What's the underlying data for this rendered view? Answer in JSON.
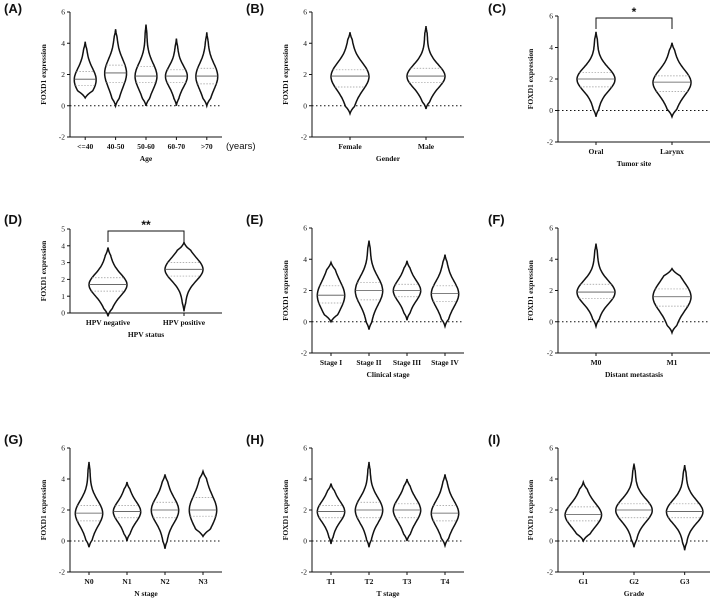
{
  "figure": {
    "ylabel": "FOXD1 expression",
    "colors": {
      "stroke": "#111111",
      "median": "#555555",
      "quartile": "#999999",
      "background": "#ffffff"
    }
  },
  "chart_data": [
    {
      "panel": "(A)",
      "type": "violin",
      "xlabel": "Age",
      "x_extra": "(years)",
      "ylabel": "FOXD1 expression",
      "ylim": [
        -2,
        6
      ],
      "yticks": [
        -2,
        0,
        2,
        4,
        6
      ],
      "reference_line": 0,
      "significance": null,
      "categories": [
        "<=40",
        "40-50",
        "50-60",
        "60-70",
        ">70"
      ],
      "series": [
        {
          "name": "<=40",
          "min": 0.5,
          "q1": 1.3,
          "median": 1.7,
          "q3": 2.2,
          "max": 4.1
        },
        {
          "name": "40-50",
          "min": 0.0,
          "q1": 1.5,
          "median": 2.1,
          "q3": 2.6,
          "max": 4.9
        },
        {
          "name": "50-60",
          "min": 0.0,
          "q1": 1.5,
          "median": 1.9,
          "q3": 2.5,
          "max": 5.2
        },
        {
          "name": "60-70",
          "min": 0.0,
          "q1": 1.5,
          "median": 1.9,
          "q3": 2.3,
          "max": 4.3
        },
        {
          "name": ">70",
          "min": 0.0,
          "q1": 1.4,
          "median": 1.9,
          "q3": 2.4,
          "max": 4.7
        }
      ]
    },
    {
      "panel": "(B)",
      "type": "violin",
      "xlabel": "Gender",
      "ylabel": "FOXD1 expression",
      "ylim": [
        -2,
        6
      ],
      "yticks": [
        -2,
        0,
        2,
        4,
        6
      ],
      "reference_line": 0,
      "significance": null,
      "categories": [
        "Female",
        "Male"
      ],
      "series": [
        {
          "name": "Female",
          "min": -0.5,
          "q1": 1.2,
          "median": 1.9,
          "q3": 2.3,
          "max": 4.7
        },
        {
          "name": "Male",
          "min": -0.2,
          "q1": 1.5,
          "median": 1.9,
          "q3": 2.4,
          "max": 5.1
        }
      ]
    },
    {
      "panel": "(C)",
      "type": "violin",
      "xlabel": "Tumor site",
      "ylabel": "FOXD1 expression",
      "ylim": [
        -2,
        6
      ],
      "yticks": [
        -2,
        0,
        2,
        4,
        6
      ],
      "reference_line": 0,
      "significance": {
        "from": 0,
        "to": 1,
        "label": "*"
      },
      "categories": [
        "Oral",
        "Larynx"
      ],
      "series": [
        {
          "name": "Oral",
          "min": -0.4,
          "q1": 1.5,
          "median": 2.0,
          "q3": 2.4,
          "max": 5.0
        },
        {
          "name": "Larynx",
          "min": -0.4,
          "q1": 1.2,
          "median": 1.8,
          "q3": 2.2,
          "max": 4.3
        }
      ]
    },
    {
      "panel": "(D)",
      "type": "violin",
      "xlabel": "HPV status",
      "ylabel": "FOXD1 expression",
      "ylim": [
        0,
        5
      ],
      "yticks": [
        0,
        1,
        2,
        3,
        4,
        5
      ],
      "reference_line": null,
      "significance": {
        "from": 0,
        "to": 1,
        "label": "**"
      },
      "categories": [
        "HPV negative",
        "HPV positive"
      ],
      "series": [
        {
          "name": "HPV negative",
          "min": -0.2,
          "q1": 1.3,
          "median": 1.7,
          "q3": 2.1,
          "max": 3.9
        },
        {
          "name": "HPV positive",
          "min": 0.1,
          "q1": 2.2,
          "median": 2.6,
          "q3": 3.0,
          "max": 4.2
        }
      ]
    },
    {
      "panel": "(E)",
      "type": "violin",
      "xlabel": "Clinical stage",
      "ylabel": "FOXD1 expression",
      "ylim": [
        -2,
        6
      ],
      "yticks": [
        -2,
        0,
        2,
        4,
        6
      ],
      "reference_line": 0,
      "significance": null,
      "categories": [
        "Stage I",
        "Stage II",
        "Stage III",
        "Stage IV"
      ],
      "series": [
        {
          "name": "Stage I",
          "min": 0.0,
          "q1": 1.2,
          "median": 1.7,
          "q3": 2.3,
          "max": 3.8
        },
        {
          "name": "Stage II",
          "min": -0.5,
          "q1": 1.4,
          "median": 2.0,
          "q3": 2.5,
          "max": 5.2
        },
        {
          "name": "Stage III",
          "min": 0.1,
          "q1": 1.6,
          "median": 2.0,
          "q3": 2.4,
          "max": 3.9
        },
        {
          "name": "Stage IV",
          "min": -0.3,
          "q1": 1.3,
          "median": 1.8,
          "q3": 2.3,
          "max": 4.3
        }
      ]
    },
    {
      "panel": "(F)",
      "type": "violin",
      "xlabel": "Distant metastasis",
      "ylabel": "FOXD1 expression",
      "ylim": [
        -2,
        6
      ],
      "yticks": [
        -2,
        0,
        2,
        4,
        6
      ],
      "reference_line": 0,
      "significance": null,
      "categories": [
        "M0",
        "M1"
      ],
      "series": [
        {
          "name": "M0",
          "min": -0.3,
          "q1": 1.5,
          "median": 1.9,
          "q3": 2.4,
          "max": 5.0
        },
        {
          "name": "M1",
          "min": -0.7,
          "q1": 1.0,
          "median": 1.6,
          "q3": 2.1,
          "max": 3.4
        }
      ]
    },
    {
      "panel": "(G)",
      "type": "violin",
      "xlabel": "N stage",
      "ylabel": "FOXD1 expression",
      "ylim": [
        -2,
        6
      ],
      "yticks": [
        -2,
        0,
        2,
        4,
        6
      ],
      "reference_line": 0,
      "significance": null,
      "categories": [
        "N0",
        "N1",
        "N2",
        "N3"
      ],
      "series": [
        {
          "name": "N0",
          "min": -0.4,
          "q1": 1.3,
          "median": 1.8,
          "q3": 2.3,
          "max": 5.1
        },
        {
          "name": "N1",
          "min": 0.0,
          "q1": 1.5,
          "median": 1.9,
          "q3": 2.3,
          "max": 3.8
        },
        {
          "name": "N2",
          "min": -0.5,
          "q1": 1.5,
          "median": 2.0,
          "q3": 2.5,
          "max": 4.3
        },
        {
          "name": "N3",
          "min": 0.3,
          "q1": 1.6,
          "median": 2.0,
          "q3": 2.8,
          "max": 4.5
        }
      ]
    },
    {
      "panel": "(H)",
      "type": "violin",
      "xlabel": "T stage",
      "ylabel": "FOXD1 expression",
      "ylim": [
        -2,
        6
      ],
      "yticks": [
        -2,
        0,
        2,
        4,
        6
      ],
      "reference_line": 0,
      "significance": null,
      "categories": [
        "T1",
        "T2",
        "T3",
        "T4"
      ],
      "series": [
        {
          "name": "T1",
          "min": -0.2,
          "q1": 1.5,
          "median": 1.9,
          "q3": 2.3,
          "max": 3.7
        },
        {
          "name": "T2",
          "min": -0.4,
          "q1": 1.5,
          "median": 2.0,
          "q3": 2.5,
          "max": 5.1
        },
        {
          "name": "T3",
          "min": 0.0,
          "q1": 1.5,
          "median": 2.0,
          "q3": 2.4,
          "max": 4.0
        },
        {
          "name": "T4",
          "min": -0.3,
          "q1": 1.3,
          "median": 1.8,
          "q3": 2.3,
          "max": 4.3
        }
      ]
    },
    {
      "panel": "(I)",
      "type": "violin",
      "xlabel": "Grade",
      "ylabel": "FOXD1 expression",
      "ylim": [
        -2,
        6
      ],
      "yticks": [
        -2,
        0,
        2,
        4,
        6
      ],
      "reference_line": 0,
      "significance": null,
      "categories": [
        "G1",
        "G2",
        "G3"
      ],
      "series": [
        {
          "name": "G1",
          "min": 0.0,
          "q1": 1.3,
          "median": 1.7,
          "q3": 2.2,
          "max": 3.8
        },
        {
          "name": "G2",
          "min": -0.4,
          "q1": 1.5,
          "median": 2.0,
          "q3": 2.4,
          "max": 5.0
        },
        {
          "name": "G3",
          "min": -0.6,
          "q1": 1.5,
          "median": 1.9,
          "q3": 2.4,
          "max": 4.9
        }
      ]
    }
  ]
}
